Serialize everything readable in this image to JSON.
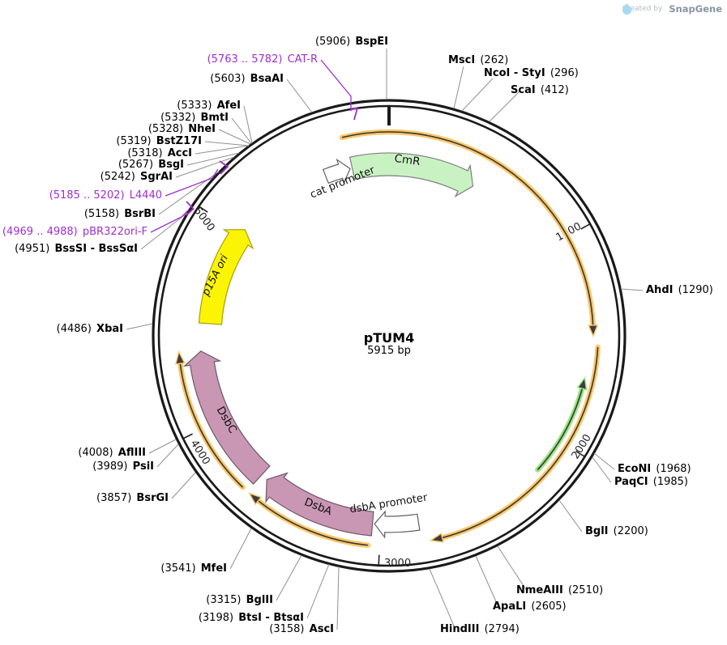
{
  "watermark": {
    "created_by": "Created by",
    "brand": "SnapGene"
  },
  "plasmid": {
    "name": "pTUM4",
    "size": "5915 bp"
  },
  "tick_labels": [
    "1000",
    "2000",
    "3000",
    "4000",
    "5000"
  ],
  "features": {
    "cmr": "CmR",
    "cat_promoter": "cat promoter",
    "p15a_ori": "p15A ori",
    "dsbc": "DsbC",
    "dsba": "DsbA",
    "dsba_promoter": "dsbA promoter"
  },
  "sites_left": [
    {
      "pos": "(5906)",
      "name": "BspEI"
    },
    {
      "pos": "(5603)",
      "name": "BsaAI"
    },
    {
      "pos": "(5333)",
      "name": "AfeI"
    },
    {
      "pos": "(5332)",
      "name": "BmtI"
    },
    {
      "pos": "(5328)",
      "name": "NheI"
    },
    {
      "pos": "(5319)",
      "name": "BstZ17I"
    },
    {
      "pos": "(5318)",
      "name": "AccI"
    },
    {
      "pos": "(5267)",
      "name": "BsgI"
    },
    {
      "pos": "(5242)",
      "name": "SgrAI"
    },
    {
      "pos": "(5158)",
      "name": "BsrBI"
    },
    {
      "pos": "(4951)",
      "name": "BssSI - BssSαI"
    },
    {
      "pos": "(4486)",
      "name": "XbaI"
    },
    {
      "pos": "(4008)",
      "name": "AflIII"
    },
    {
      "pos": "(3989)",
      "name": "PsiI"
    },
    {
      "pos": "(3857)",
      "name": "BsrGI"
    },
    {
      "pos": "(3541)",
      "name": "MfeI"
    },
    {
      "pos": "(3315)",
      "name": "BglII"
    },
    {
      "pos": "(3198)",
      "name": "BtsI - BtsαI"
    },
    {
      "pos": "(3158)",
      "name": "AscI"
    }
  ],
  "sites_right": [
    {
      "name": "MscI",
      "pos": "(262)"
    },
    {
      "name": "NcoI - StyI",
      "pos": "(296)"
    },
    {
      "name": "ScaI",
      "pos": "(412)"
    },
    {
      "name": "AhdI",
      "pos": "(1290)"
    },
    {
      "name": "EcoNI",
      "pos": "(1968)"
    },
    {
      "name": "PaqCI",
      "pos": "(1985)"
    },
    {
      "name": "BglI",
      "pos": "(2200)"
    },
    {
      "name": "NmeAIII",
      "pos": "(2510)"
    },
    {
      "name": "ApaLI",
      "pos": "(2605)"
    },
    {
      "name": "HindIII",
      "pos": "(2794)"
    }
  ],
  "primers": [
    {
      "pos": "(5763 .. 5782)",
      "name": "CAT-R"
    },
    {
      "pos": "(5185 .. 5202)",
      "name": "L4440"
    },
    {
      "pos": "(4969 .. 4988)",
      "name": "pBR322ori-F"
    }
  ],
  "colors": {
    "ring": "#1a1a1a",
    "leader_gray": "#909090",
    "primer_purple": "#9d2fd0",
    "cds_green": "#c9f2c3",
    "ori_yellow": "#fcf405",
    "ori_outline": "#a8a000",
    "chaperone_pink": "#c996b4",
    "pink_outline": "#6f5864",
    "orf_orange": "#ffc766",
    "orf_green": "#97e67f",
    "orf_core": "#3d3d3d",
    "white_arrow": "#ffffff"
  }
}
